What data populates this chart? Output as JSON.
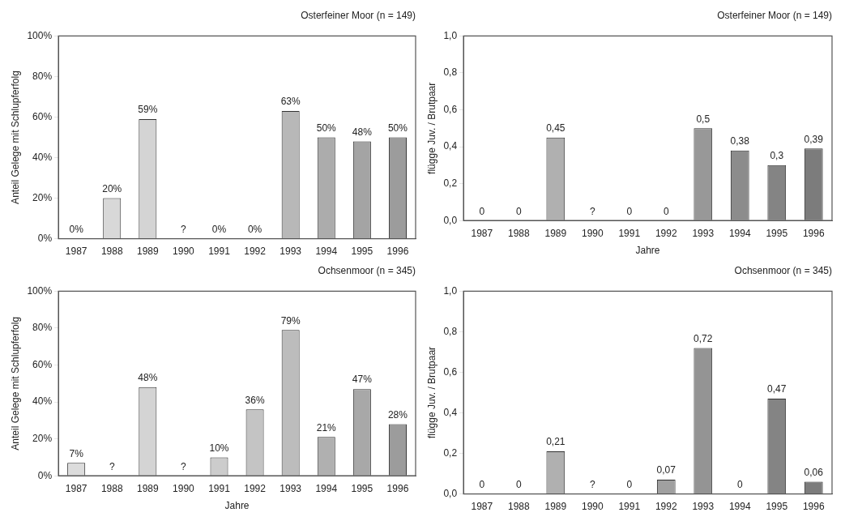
{
  "chart_data": [
    {
      "type": "bar",
      "title": "Osterfeiner Moor (n = 149)",
      "ylabel": "Anteil Gelege mit Schlupferfolg",
      "categories": [
        "1987",
        "1988",
        "1989",
        "1990",
        "1991",
        "1992",
        "1993",
        "1994",
        "1995",
        "1996"
      ],
      "values": [
        0,
        20,
        59,
        null,
        0,
        0,
        63,
        50,
        48,
        50
      ],
      "value_labels": [
        "0%",
        "20%",
        "59%",
        "?",
        "0%",
        "0%",
        "63%",
        "50%",
        "48%",
        "50%"
      ],
      "colors": [
        "#dcdcdc",
        "#d8d8d8",
        "#d4d4d4",
        "#d0d0d0",
        "#cccccc",
        "#c8c8c8",
        "#b8b8b8",
        "#acacac",
        "#a4a4a4",
        "#9c9c9c"
      ],
      "ylim": [
        0,
        100
      ],
      "yticks": [
        {
          "value": 0,
          "label": "0%"
        },
        {
          "value": 20,
          "label": "20%"
        },
        {
          "value": 40,
          "label": "40%"
        },
        {
          "value": 60,
          "label": "60%"
        },
        {
          "value": 80,
          "label": "80%"
        },
        {
          "value": 100,
          "label": "100%"
        }
      ],
      "grid": false,
      "legend": false
    },
    {
      "type": "bar",
      "title": "Osterfeiner Moor (n = 149)",
      "xlabel": "Jahre",
      "ylabel": "flügge Juv. / Brutpaar",
      "categories": [
        "1987",
        "1988",
        "1989",
        "1990",
        "1991",
        "1992",
        "1993",
        "1994",
        "1995",
        "1996"
      ],
      "values": [
        0,
        0,
        0.45,
        null,
        0,
        0,
        0.5,
        0.38,
        0.3,
        0.39
      ],
      "value_labels": [
        "0",
        "0",
        "0,45",
        "?",
        "0",
        "0",
        "0,5",
        "0,38",
        "0,3",
        "0,39"
      ],
      "colors": [
        "#b8b8b8",
        "#b4b4b4",
        "#b0b0b0",
        "#acacac",
        "#a8a8a8",
        "#a4a4a4",
        "#989898",
        "#8c8c8c",
        "#848484",
        "#7c7c7c"
      ],
      "ylim": [
        0,
        1
      ],
      "yticks": [
        {
          "value": 0,
          "label": "0,0"
        },
        {
          "value": 0.2,
          "label": "0,2"
        },
        {
          "value": 0.4,
          "label": "0,4"
        },
        {
          "value": 0.6,
          "label": "0,6"
        },
        {
          "value": 0.8,
          "label": "0,8"
        },
        {
          "value": 1,
          "label": "1,0"
        }
      ],
      "grid": false,
      "legend": false
    },
    {
      "type": "bar",
      "title": "Ochsenmoor (n = 345)",
      "xlabel": "Jahre",
      "ylabel": "Anteil Gelege mit Schlupferfolg",
      "categories": [
        "1987",
        "1988",
        "1989",
        "1990",
        "1991",
        "1992",
        "1993",
        "1994",
        "1995",
        "1996"
      ],
      "values": [
        7,
        null,
        48,
        null,
        10,
        36,
        79,
        21,
        47,
        28
      ],
      "value_labels": [
        "7%",
        "?",
        "48%",
        "?",
        "10%",
        "36%",
        "79%",
        "21%",
        "47%",
        "28%"
      ],
      "colors": [
        "#dcdcdc",
        "#d8d8d8",
        "#d4d4d4",
        "#d0d0d0",
        "#cccccc",
        "#c4c4c4",
        "#bcbcbc",
        "#b0b0b0",
        "#a8a8a8",
        "#9c9c9c"
      ],
      "ylim": [
        0,
        100
      ],
      "yticks": [
        {
          "value": 0,
          "label": "0%"
        },
        {
          "value": 20,
          "label": "20%"
        },
        {
          "value": 40,
          "label": "40%"
        },
        {
          "value": 60,
          "label": "60%"
        },
        {
          "value": 80,
          "label": "80%"
        },
        {
          "value": 100,
          "label": "100%"
        }
      ],
      "grid": false,
      "legend": false
    },
    {
      "type": "bar",
      "title": "Ochsenmoor (n = 345)",
      "ylabel": "flügge Juv. / Brutpaar",
      "categories": [
        "1987",
        "1988",
        "1989",
        "1990",
        "1991",
        "1992",
        "1993",
        "1994",
        "1995",
        "1996"
      ],
      "values": [
        0,
        0,
        0.21,
        null,
        0,
        0.07,
        0.72,
        0,
        0.47,
        0.06
      ],
      "value_labels": [
        "0",
        "0",
        "0,21",
        "?",
        "0",
        "0,07",
        "0,72",
        "0",
        "0,47",
        "0,06"
      ],
      "colors": [
        "#b8b8b8",
        "#b4b4b4",
        "#b0b0b0",
        "#acacac",
        "#a8a8a8",
        "#a0a0a0",
        "#949494",
        "#8c8c8c",
        "#848484",
        "#7c7c7c"
      ],
      "ylim": [
        0,
        1
      ],
      "yticks": [
        {
          "value": 0,
          "label": "0,0"
        },
        {
          "value": 0.2,
          "label": "0,2"
        },
        {
          "value": 0.4,
          "label": "0,4"
        },
        {
          "value": 0.6,
          "label": "0,6"
        },
        {
          "value": 0.8,
          "label": "0,8"
        },
        {
          "value": 1,
          "label": "1,0"
        }
      ],
      "grid": false,
      "legend": false
    }
  ]
}
